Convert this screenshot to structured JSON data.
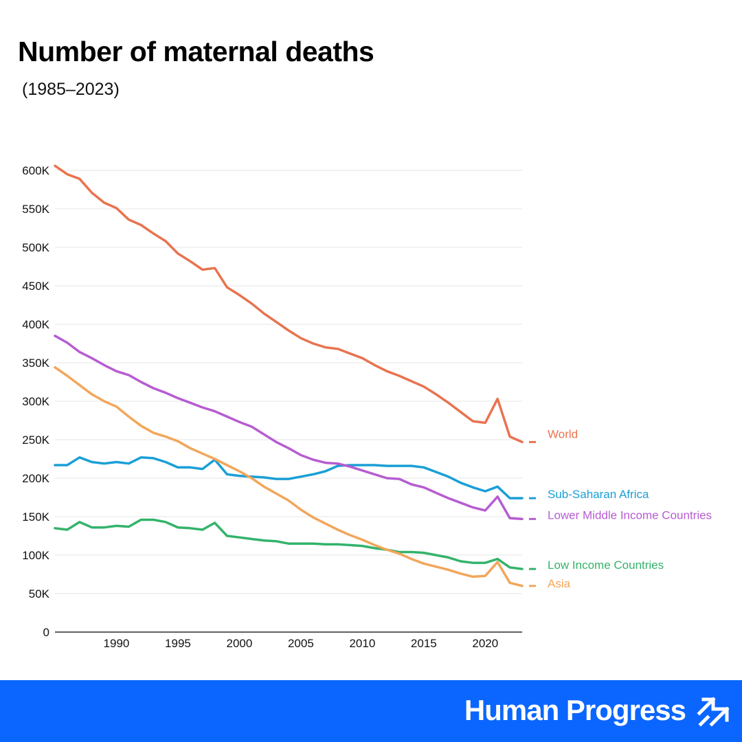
{
  "chart_data": {
    "type": "line",
    "title": "Number of maternal deaths",
    "subtitle": "(1985–2023)",
    "xlim": [
      1985,
      2023
    ],
    "ylim": [
      0,
      600000
    ],
    "x_ticks": [
      1990,
      1995,
      2000,
      2005,
      2010,
      2015,
      2020
    ],
    "y_ticks": [
      {
        "value": 0,
        "label": "0"
      },
      {
        "value": 50000,
        "label": "50K"
      },
      {
        "value": 100000,
        "label": "100K"
      },
      {
        "value": 150000,
        "label": "150K"
      },
      {
        "value": 200000,
        "label": "200K"
      },
      {
        "value": 250000,
        "label": "250K"
      },
      {
        "value": 300000,
        "label": "300K"
      },
      {
        "value": 350000,
        "label": "350K"
      },
      {
        "value": 400000,
        "label": "400K"
      },
      {
        "value": 450000,
        "label": "450K"
      },
      {
        "value": 500000,
        "label": "500K"
      },
      {
        "value": 550000,
        "label": "550K"
      },
      {
        "value": 600000,
        "label": "600K"
      }
    ],
    "grid": true,
    "legend": "right, labels at line ends",
    "x": [
      1985,
      1986,
      1987,
      1988,
      1989,
      1990,
      1991,
      1992,
      1993,
      1994,
      1995,
      1996,
      1997,
      1998,
      1999,
      2000,
      2001,
      2002,
      2003,
      2004,
      2005,
      2006,
      2007,
      2008,
      2009,
      2010,
      2011,
      2012,
      2013,
      2014,
      2015,
      2016,
      2017,
      2018,
      2019,
      2020,
      2021,
      2022,
      2023
    ],
    "series": [
      {
        "name": "World",
        "color": "#e8734f",
        "values": [
          606000,
          595000,
          589000,
          571000,
          558000,
          551000,
          536000,
          529000,
          518000,
          508000,
          492000,
          482000,
          471000,
          473000,
          448000,
          438000,
          427000,
          414000,
          403000,
          392000,
          382000,
          375000,
          370000,
          368000,
          362000,
          356000,
          347000,
          339000,
          333000,
          326000,
          319000,
          309000,
          298000,
          286000,
          274000,
          272000,
          303000,
          254000,
          247000
        ]
      },
      {
        "name": "Sub-Saharan Africa",
        "color": "#1a9fd6",
        "values": [
          217000,
          217000,
          227000,
          221000,
          219000,
          221000,
          219000,
          227000,
          226000,
          221000,
          214000,
          214000,
          212000,
          224000,
          205000,
          203000,
          202000,
          201000,
          199000,
          199000,
          202000,
          205000,
          209000,
          216000,
          217000,
          217000,
          217000,
          216000,
          216000,
          216000,
          214000,
          208000,
          202000,
          194000,
          188000,
          183000,
          189000,
          174000,
          174000
        ]
      },
      {
        "name": "Lower Middle Income Countries",
        "color": "#b65cd1",
        "values": [
          385000,
          376000,
          364000,
          356000,
          347000,
          339000,
          334000,
          325000,
          317000,
          311000,
          304000,
          298000,
          292000,
          287000,
          280000,
          273000,
          267000,
          257000,
          247000,
          239000,
          230000,
          224000,
          220000,
          219000,
          215000,
          210000,
          205000,
          200000,
          199000,
          192000,
          188000,
          181000,
          174000,
          168000,
          162000,
          158000,
          176000,
          148000,
          147000
        ]
      },
      {
        "name": "Low Income Countries",
        "color": "#33b36b",
        "values": [
          135000,
          133000,
          143000,
          136000,
          136000,
          138000,
          137000,
          146000,
          146000,
          143000,
          136000,
          135000,
          133000,
          142000,
          125000,
          123000,
          121000,
          119000,
          118000,
          115000,
          115000,
          115000,
          114000,
          114000,
          113000,
          112000,
          109000,
          107000,
          104000,
          104000,
          103000,
          100000,
          97000,
          92000,
          90000,
          90000,
          95000,
          84000,
          82000
        ]
      },
      {
        "name": "Asia",
        "color": "#f2a65a",
        "values": [
          344000,
          333000,
          321000,
          309000,
          300000,
          293000,
          280000,
          268000,
          259000,
          254000,
          248000,
          239000,
          232000,
          225000,
          217000,
          209000,
          200000,
          189000,
          180000,
          171000,
          159000,
          149000,
          141000,
          133000,
          126000,
          120000,
          113000,
          107000,
          102000,
          95000,
          89000,
          85000,
          81000,
          76000,
          72000,
          73000,
          91000,
          64000,
          60000
        ]
      }
    ]
  },
  "footer": {
    "brand": "Human Progress",
    "brand_icon": "double-arrow-up-right-icon",
    "background": "#0a66ff"
  }
}
